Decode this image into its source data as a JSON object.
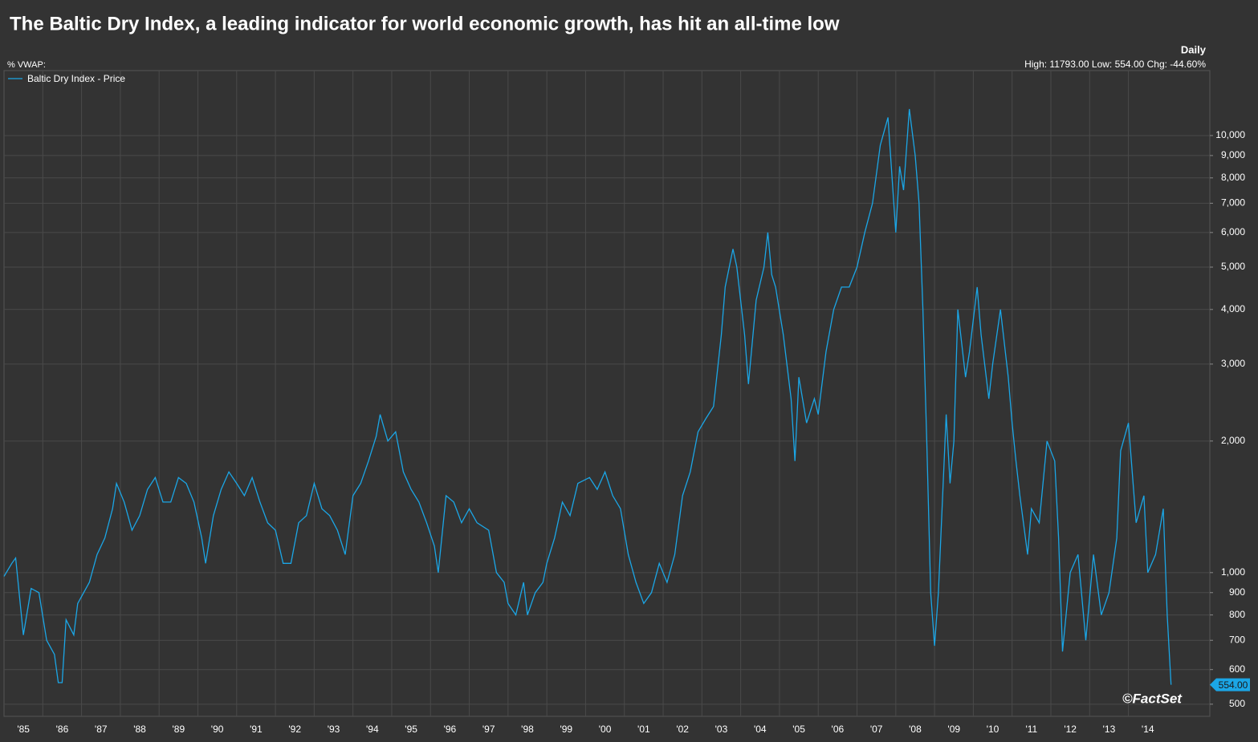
{
  "chart_data": {
    "type": "line",
    "title": "The Baltic Dry Index, a leading indicator for world economic growth, has hit an all-time low",
    "frequency": "Daily",
    "stats": "High: 11793.00 Low: 554.00 Chg: -44.60%",
    "indicator": "%  VWAP:",
    "source": "©FactSet",
    "last_value_label": "554.00",
    "log_y": true,
    "grid": true,
    "legend": "top-left",
    "xlim": [
      1985,
      2016.1
    ],
    "xticks": [
      {
        "value": 1985.5,
        "label": "'85"
      },
      {
        "value": 1986.5,
        "label": "'86"
      },
      {
        "value": 1987.5,
        "label": "'87"
      },
      {
        "value": 1988.5,
        "label": "'88"
      },
      {
        "value": 1989.5,
        "label": "'89"
      },
      {
        "value": 1990.5,
        "label": "'90"
      },
      {
        "value": 1991.5,
        "label": "'91"
      },
      {
        "value": 1992.5,
        "label": "'92"
      },
      {
        "value": 1993.5,
        "label": "'93"
      },
      {
        "value": 1994.5,
        "label": "'94"
      },
      {
        "value": 1995.5,
        "label": "'95"
      },
      {
        "value": 1996.5,
        "label": "'96"
      },
      {
        "value": 1997.5,
        "label": "'97"
      },
      {
        "value": 1998.5,
        "label": "'98"
      },
      {
        "value": 1999.5,
        "label": "'99"
      },
      {
        "value": 2000.5,
        "label": "'00"
      },
      {
        "value": 2001.5,
        "label": "'01"
      },
      {
        "value": 2002.5,
        "label": "'02"
      },
      {
        "value": 2003.5,
        "label": "'03"
      },
      {
        "value": 2004.5,
        "label": "'04"
      },
      {
        "value": 2005.5,
        "label": "'05"
      },
      {
        "value": 2006.5,
        "label": "'06"
      },
      {
        "value": 2007.5,
        "label": "'07"
      },
      {
        "value": 2008.5,
        "label": "'08"
      },
      {
        "value": 2009.5,
        "label": "'09"
      },
      {
        "value": 2010.5,
        "label": "'10"
      },
      {
        "value": 2011.5,
        "label": "'11"
      },
      {
        "value": 2012.5,
        "label": "'12"
      },
      {
        "value": 2013.5,
        "label": "'13"
      },
      {
        "value": 2014.5,
        "label": "'14"
      }
    ],
    "ylim": [
      469,
      14080
    ],
    "yticks": [
      500,
      600,
      700,
      800,
      900,
      {
        "value": 1000,
        "label": "1,000"
      },
      {
        "value": 2000,
        "label": "2,000"
      },
      {
        "value": 3000,
        "label": "3,000"
      },
      {
        "value": 4000,
        "label": "4,000"
      },
      {
        "value": 5000,
        "label": "5,000"
      },
      {
        "value": 6000,
        "label": "6,000"
      },
      {
        "value": 7000,
        "label": "7,000"
      },
      {
        "value": 8000,
        "label": "8,000"
      },
      {
        "value": 9000,
        "label": "9,000"
      },
      {
        "value": 10000,
        "label": "10,000"
      }
    ],
    "x": [
      1985.0,
      1985.2,
      1985.3,
      1985.5,
      1985.7,
      1985.9,
      1986.1,
      1986.3,
      1986.4,
      1986.5,
      1986.6,
      1986.8,
      1986.9,
      1987.2,
      1987.4,
      1987.6,
      1987.8,
      1987.9,
      1988.1,
      1988.3,
      1988.5,
      1988.7,
      1988.9,
      1989.1,
      1989.3,
      1989.5,
      1989.7,
      1989.9,
      1990.1,
      1990.2,
      1990.4,
      1990.6,
      1990.8,
      1991.0,
      1991.2,
      1991.4,
      1991.6,
      1991.8,
      1992.0,
      1992.2,
      1992.4,
      1992.6,
      1992.8,
      1993.0,
      1993.2,
      1993.4,
      1993.6,
      1993.8,
      1994.0,
      1994.2,
      1994.4,
      1994.6,
      1994.7,
      1994.9,
      1995.1,
      1995.3,
      1995.5,
      1995.7,
      1995.9,
      1996.1,
      1996.2,
      1996.4,
      1996.6,
      1996.8,
      1997.0,
      1997.2,
      1997.5,
      1997.7,
      1997.9,
      1998.0,
      1998.2,
      1998.4,
      1998.5,
      1998.7,
      1998.9,
      1999.0,
      1999.2,
      1999.4,
      1999.6,
      1999.8,
      2000.1,
      2000.3,
      2000.5,
      2000.7,
      2000.9,
      2001.1,
      2001.3,
      2001.5,
      2001.7,
      2001.9,
      2002.1,
      2002.3,
      2002.5,
      2002.7,
      2002.9,
      2003.1,
      2003.3,
      2003.5,
      2003.6,
      2003.8,
      2003.9,
      2004.1,
      2004.2,
      2004.4,
      2004.6,
      2004.7,
      2004.8,
      2004.9,
      2005.1,
      2005.3,
      2005.4,
      2005.5,
      2005.7,
      2005.9,
      2006.0,
      2006.2,
      2006.4,
      2006.6,
      2006.8,
      2007.0,
      2007.2,
      2007.4,
      2007.6,
      2007.8,
      2008.0,
      2008.1,
      2008.2,
      2008.35,
      2008.5,
      2008.6,
      2008.7,
      2008.8,
      2008.9,
      2009.0,
      2009.1,
      2009.3,
      2009.4,
      2009.5,
      2009.6,
      2009.8,
      2009.9,
      2010.1,
      2010.2,
      2010.4,
      2010.5,
      2010.7,
      2010.9,
      2011.0,
      2011.1,
      2011.2,
      2011.4,
      2011.5,
      2011.7,
      2011.9,
      2012.1,
      2012.2,
      2012.3,
      2012.5,
      2012.7,
      2012.9,
      2013.1,
      2013.3,
      2013.5,
      2013.7,
      2013.8,
      2014.0,
      2014.2,
      2014.4,
      2014.5,
      2014.7,
      2014.9,
      2015.0,
      2015.1
    ],
    "series": [
      {
        "name": "Baltic Dry Index - Price",
        "color": "#1ba6e6",
        "values": [
          980,
          1050,
          1080,
          720,
          920,
          900,
          700,
          650,
          560,
          560,
          780,
          720,
          850,
          950,
          1100,
          1200,
          1400,
          1600,
          1450,
          1250,
          1350,
          1550,
          1650,
          1450,
          1450,
          1650,
          1600,
          1450,
          1200,
          1050,
          1350,
          1550,
          1700,
          1600,
          1500,
          1650,
          1450,
          1300,
          1250,
          1050,
          1050,
          1300,
          1350,
          1600,
          1400,
          1350,
          1250,
          1100,
          1500,
          1600,
          1800,
          2050,
          2300,
          2000,
          2100,
          1700,
          1550,
          1450,
          1300,
          1150,
          1000,
          1500,
          1450,
          1300,
          1400,
          1300,
          1250,
          1000,
          950,
          850,
          800,
          950,
          800,
          900,
          950,
          1050,
          1200,
          1450,
          1350,
          1600,
          1650,
          1550,
          1700,
          1500,
          1400,
          1100,
          950,
          850,
          900,
          1050,
          950,
          1100,
          1500,
          1700,
          2100,
          2250,
          2400,
          3500,
          4500,
          5500,
          5000,
          3500,
          2700,
          4200,
          5000,
          6000,
          4800,
          4500,
          3500,
          2500,
          1800,
          2800,
          2200,
          2500,
          2300,
          3200,
          4000,
          4500,
          4500,
          5000,
          6000,
          7000,
          9500,
          11000,
          6000,
          8500,
          7500,
          11500,
          9000,
          7000,
          4000,
          2000,
          900,
          680,
          900,
          2300,
          1600,
          2000,
          4000,
          2800,
          3200,
          4500,
          3500,
          2500,
          3000,
          4000,
          2800,
          2200,
          1800,
          1500,
          1100,
          1400,
          1300,
          2000,
          1800,
          1200,
          660,
          1000,
          1100,
          700,
          1100,
          800,
          900,
          1200,
          1900,
          2200,
          1300,
          1500,
          1000,
          1100,
          1400,
          800,
          554
        ]
      }
    ]
  }
}
